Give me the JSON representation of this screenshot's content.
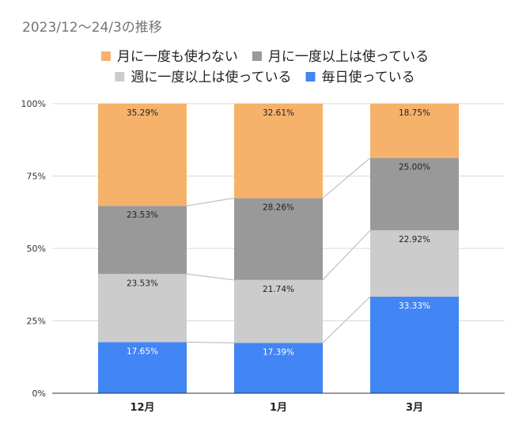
{
  "chart_data": {
    "type": "bar",
    "stacked": true,
    "normalized": true,
    "title": "2023/12〜24/3の推移",
    "categories": [
      "12月",
      "1月",
      "3月"
    ],
    "series": [
      {
        "name": "毎日使っている",
        "values": [
          17.65,
          17.39,
          33.33
        ],
        "labels": [
          "17.65%",
          "17.39%",
          "33.33%"
        ],
        "color": "#4285f4",
        "label_color": "#ffffff"
      },
      {
        "name": "週に一度以上は使っている",
        "values": [
          23.53,
          21.74,
          22.92
        ],
        "labels": [
          "23.53%",
          "21.74%",
          "22.92%"
        ],
        "color": "#cccccc",
        "label_color": "#222222"
      },
      {
        "name": "月に一度以上は使っている",
        "values": [
          23.53,
          28.26,
          25.0
        ],
        "labels": [
          "23.53%",
          "28.26%",
          "25.00%"
        ],
        "color": "#999999",
        "label_color": "#222222"
      },
      {
        "name": "月に一度も使わない",
        "values": [
          35.29,
          32.61,
          18.75
        ],
        "labels": [
          "35.29%",
          "32.61%",
          "18.75%"
        ],
        "color": "#f6b26b",
        "label_color": "#222222"
      }
    ],
    "legend": {
      "position": "top",
      "rows": [
        [
          "月に一度も使わない",
          "月に一度以上は使っている"
        ],
        [
          "週に一度以上は使っている",
          "毎日使っている"
        ]
      ]
    },
    "yticks": [
      "0%",
      "25%",
      "50%",
      "75%",
      "100%"
    ],
    "ylim": [
      0,
      100
    ],
    "grid": true,
    "series_lines": true,
    "colors": {
      "gridline": "#d9d9d9",
      "connector": "#c0c0c0"
    }
  }
}
